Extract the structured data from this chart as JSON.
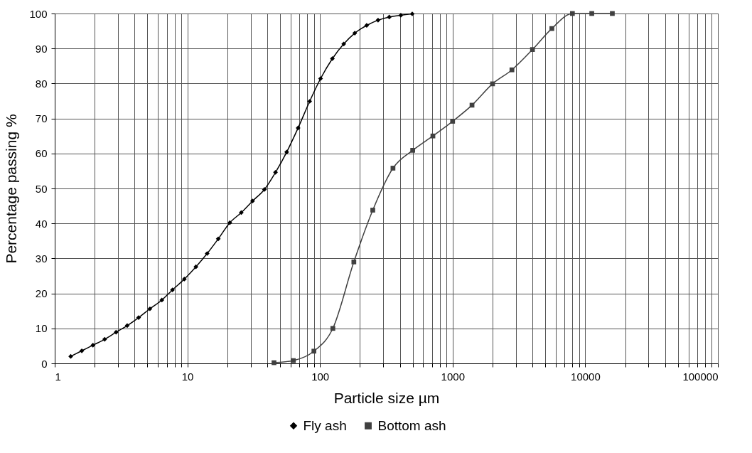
{
  "chart_data": {
    "type": "line",
    "xlabel": "Particle size µm",
    "ylabel": "Percentage passing %",
    "log": "x",
    "grid": true,
    "legend": "bottom",
    "line_style": "solid",
    "xlim": [
      1,
      100000
    ],
    "ylim": [
      0,
      100
    ],
    "xticks": [
      1,
      {
        "value": 2,
        "label": null
      },
      {
        "value": 3,
        "label": null
      },
      {
        "value": 4,
        "label": null
      },
      {
        "value": 5,
        "label": null
      },
      {
        "value": 6,
        "label": null
      },
      {
        "value": 7,
        "label": null
      },
      {
        "value": 8,
        "label": null
      },
      {
        "value": 9,
        "label": null
      },
      10,
      {
        "value": 20,
        "label": null
      },
      {
        "value": 30,
        "label": null
      },
      {
        "value": 40,
        "label": null
      },
      {
        "value": 50,
        "label": null
      },
      {
        "value": 60,
        "label": null
      },
      {
        "value": 70,
        "label": null
      },
      {
        "value": 80,
        "label": null
      },
      {
        "value": 90,
        "label": null
      },
      100,
      {
        "value": 200,
        "label": null
      },
      {
        "value": 300,
        "label": null
      },
      {
        "value": 400,
        "label": null
      },
      {
        "value": 500,
        "label": null
      },
      {
        "value": 600,
        "label": null
      },
      {
        "value": 700,
        "label": null
      },
      {
        "value": 800,
        "label": null
      },
      {
        "value": 900,
        "label": null
      },
      1000,
      {
        "value": 2000,
        "label": null
      },
      {
        "value": 3000,
        "label": null
      },
      {
        "value": 4000,
        "label": null
      },
      {
        "value": 5000,
        "label": null
      },
      {
        "value": 6000,
        "label": null
      },
      {
        "value": 7000,
        "label": null
      },
      {
        "value": 8000,
        "label": null
      },
      {
        "value": 9000,
        "label": null
      },
      10000,
      {
        "value": 20000,
        "label": null
      },
      {
        "value": 30000,
        "label": null
      },
      {
        "value": 40000,
        "label": null
      },
      {
        "value": 50000,
        "label": null
      },
      {
        "value": 60000,
        "label": null
      },
      {
        "value": 70000,
        "label": null
      },
      {
        "value": 80000,
        "label": null
      },
      {
        "value": 90000,
        "label": null
      },
      100000
    ],
    "yticks": [
      0,
      10,
      20,
      30,
      40,
      50,
      60,
      70,
      80,
      90,
      100
    ],
    "series": [
      {
        "name": "Fly ash",
        "color": "#000000",
        "marker": "diamond",
        "x": [
          1.32,
          1.6,
          1.94,
          2.38,
          2.9,
          3.52,
          4.29,
          5.22,
          6.42,
          7.72,
          9.49,
          11.6,
          14.1,
          17.1,
          20.9,
          25.5,
          31,
          38.1,
          46.2,
          56.1,
          68.4,
          83.6,
          101,
          124,
          151,
          183,
          225,
          274,
          333,
          407,
          496
        ],
        "values": [
          2.0,
          3.6,
          5.2,
          6.9,
          8.9,
          10.8,
          13.1,
          15.6,
          18.1,
          21.0,
          24.1,
          27.6,
          31.4,
          35.6,
          40.2,
          43.1,
          46.4,
          49.7,
          54.6,
          60.4,
          67.3,
          74.9,
          81.4,
          87.1,
          91.3,
          94.4,
          96.6,
          98.1,
          99.0,
          99.5,
          99.9
        ]
      },
      {
        "name": "Bottom ash",
        "color": "#404040",
        "marker": "square",
        "x": [
          45,
          63,
          90,
          125,
          180,
          250,
          355,
          500,
          710,
          1000,
          1400,
          2000,
          2800,
          4000,
          5600,
          8000,
          11200,
          16000
        ],
        "values": [
          0.2,
          0.8,
          3.5,
          10.0,
          29.0,
          43.8,
          55.8,
          60.9,
          65.0,
          69.2,
          73.8,
          79.9,
          83.9,
          89.7,
          95.7,
          100,
          100,
          100
        ]
      }
    ]
  }
}
